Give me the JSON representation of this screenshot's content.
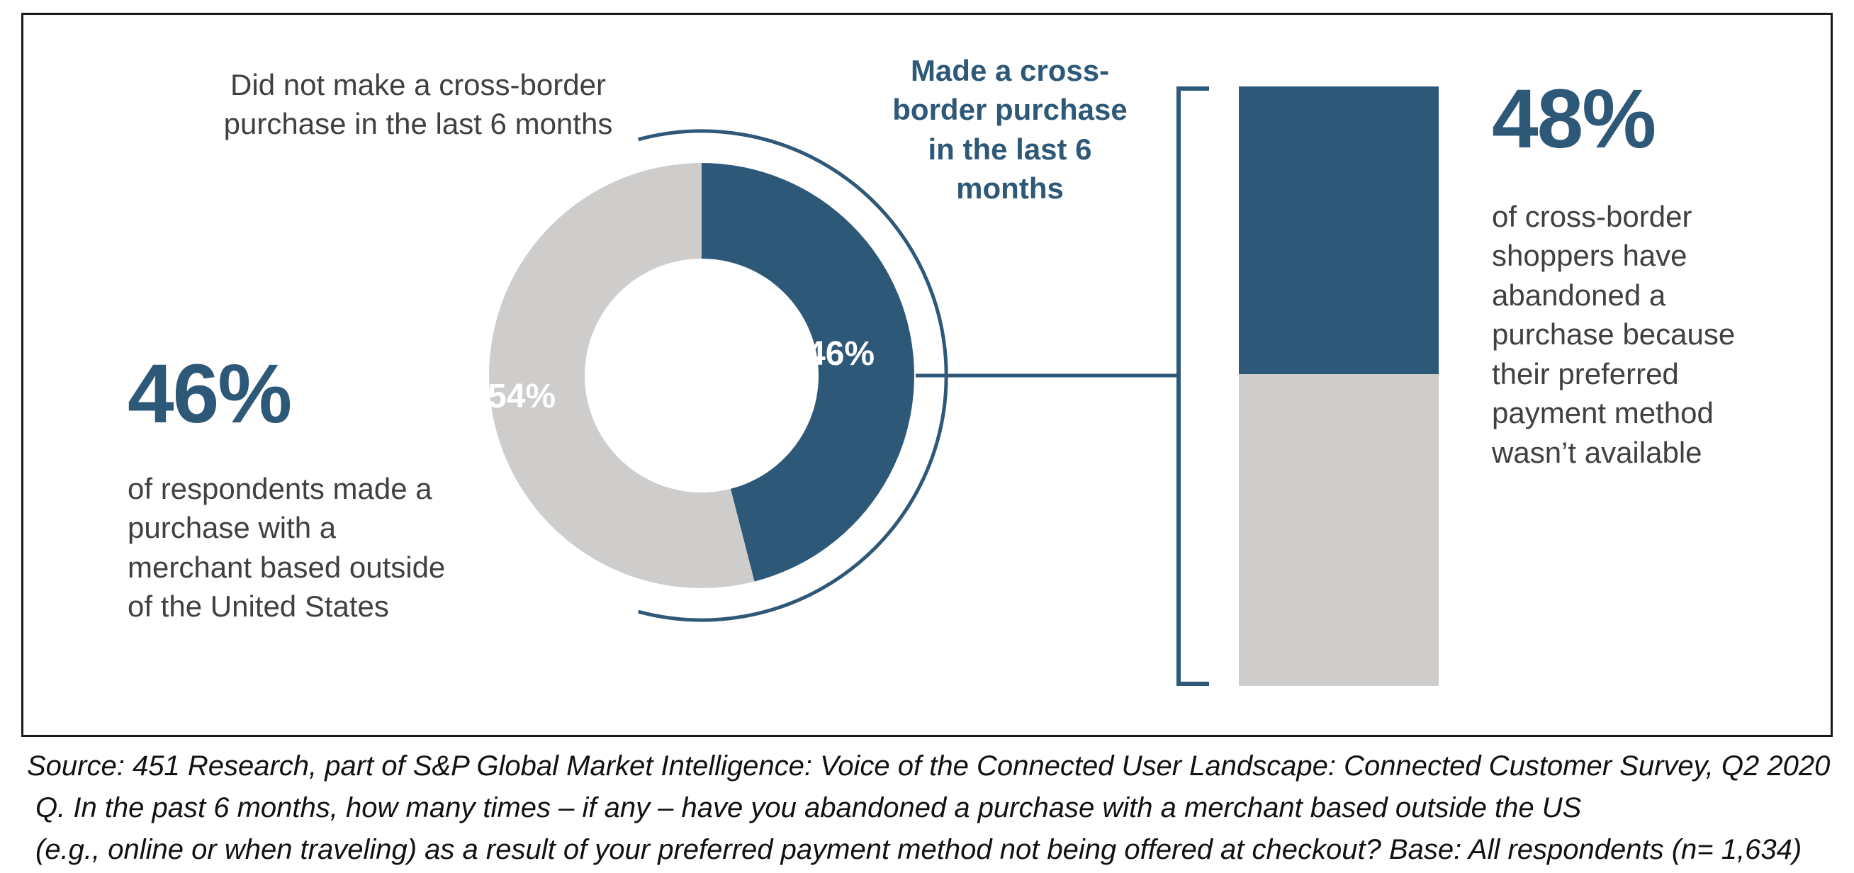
{
  "colors": {
    "navy": "#2E5878",
    "gray": "#CFCDCB",
    "text_dark": "#404040"
  },
  "labels": {
    "donut_left_title": "Did not make a cross-border purchase in the last 6 months",
    "donut_right_title": "Made a cross-border purchase in the last 6 months"
  },
  "left_stat": {
    "value": "46%",
    "desc": "of respondents made a purchase with a merchant based outside of the United States"
  },
  "right_stat": {
    "value": "48%",
    "desc": "of cross-border shoppers have abandoned a purchase because their preferred payment method wasn’t available"
  },
  "source": {
    "line1": "Source: 451 Research, part of S&P Global Market Intelligence: Voice of the Connected User Landscape: Connected Customer Survey, Q2 2020",
    "line2": "Q. In the past 6 months, how many times – if any – have you abandoned a purchase with a merchant based outside the US",
    "line3": "(e.g., online or when traveling) as a result of your preferred payment method not being offered at checkout? Base: All respondents (n= 1,634)"
  },
  "chart_data": [
    {
      "type": "pie",
      "subtype": "donut",
      "labels": [
        "Made a cross-border purchase in the last 6 months",
        "Did not make a cross-border purchase in the last 6 months"
      ],
      "values": [
        46,
        54
      ],
      "unit": "%",
      "colors": [
        "#2E5878",
        "#CFCDCB"
      ],
      "data_labels": [
        "46%",
        "54%"
      ],
      "legend": "none"
    },
    {
      "type": "bar",
      "subtype": "stacked-single-column",
      "categories": [
        "Cross-border shoppers"
      ],
      "series": [
        {
          "name": "of cross-border shoppers have abandoned a purchase because their preferred payment method wasn’t available",
          "values": [
            48
          ],
          "color": "#2E5878"
        },
        {
          "name": "",
          "values": [
            52
          ],
          "color": "#CFCDCB"
        }
      ],
      "unit": "%",
      "ylim": [
        0,
        100
      ],
      "grid": false,
      "legend": "none"
    }
  ]
}
